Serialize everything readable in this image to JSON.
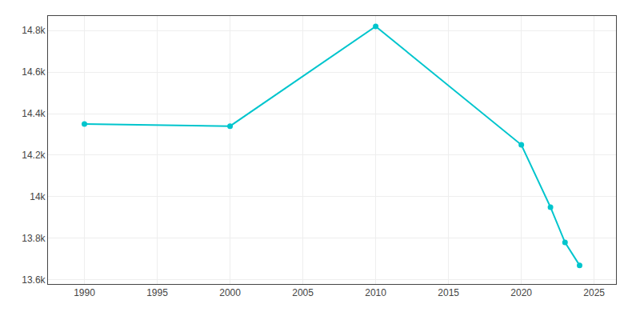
{
  "chart_data": {
    "type": "line",
    "x": [
      1990,
      2000,
      2010,
      2020,
      2022,
      2023,
      2024
    ],
    "values": [
      14350,
      14340,
      14820,
      14250,
      13950,
      13780,
      13670
    ],
    "color": "#00C5CD",
    "marker": "circle",
    "line_style": "solid",
    "xlim": [
      1987.5,
      2026.5
    ],
    "xticks": [
      1990,
      1995,
      2000,
      2005,
      2010,
      2015,
      2020,
      2025
    ],
    "ylim": [
      13580,
      14870
    ],
    "yticks": [
      {
        "value": 13600,
        "label": "13.6k"
      },
      {
        "value": 13800,
        "label": "13.8k"
      },
      {
        "value": 14000,
        "label": "14k"
      },
      {
        "value": 14200,
        "label": "14.2k"
      },
      {
        "value": 14400,
        "label": "14.4k"
      },
      {
        "value": 14600,
        "label": "14.6k"
      },
      {
        "value": 14800,
        "label": "14.8k"
      }
    ],
    "grid": true
  }
}
